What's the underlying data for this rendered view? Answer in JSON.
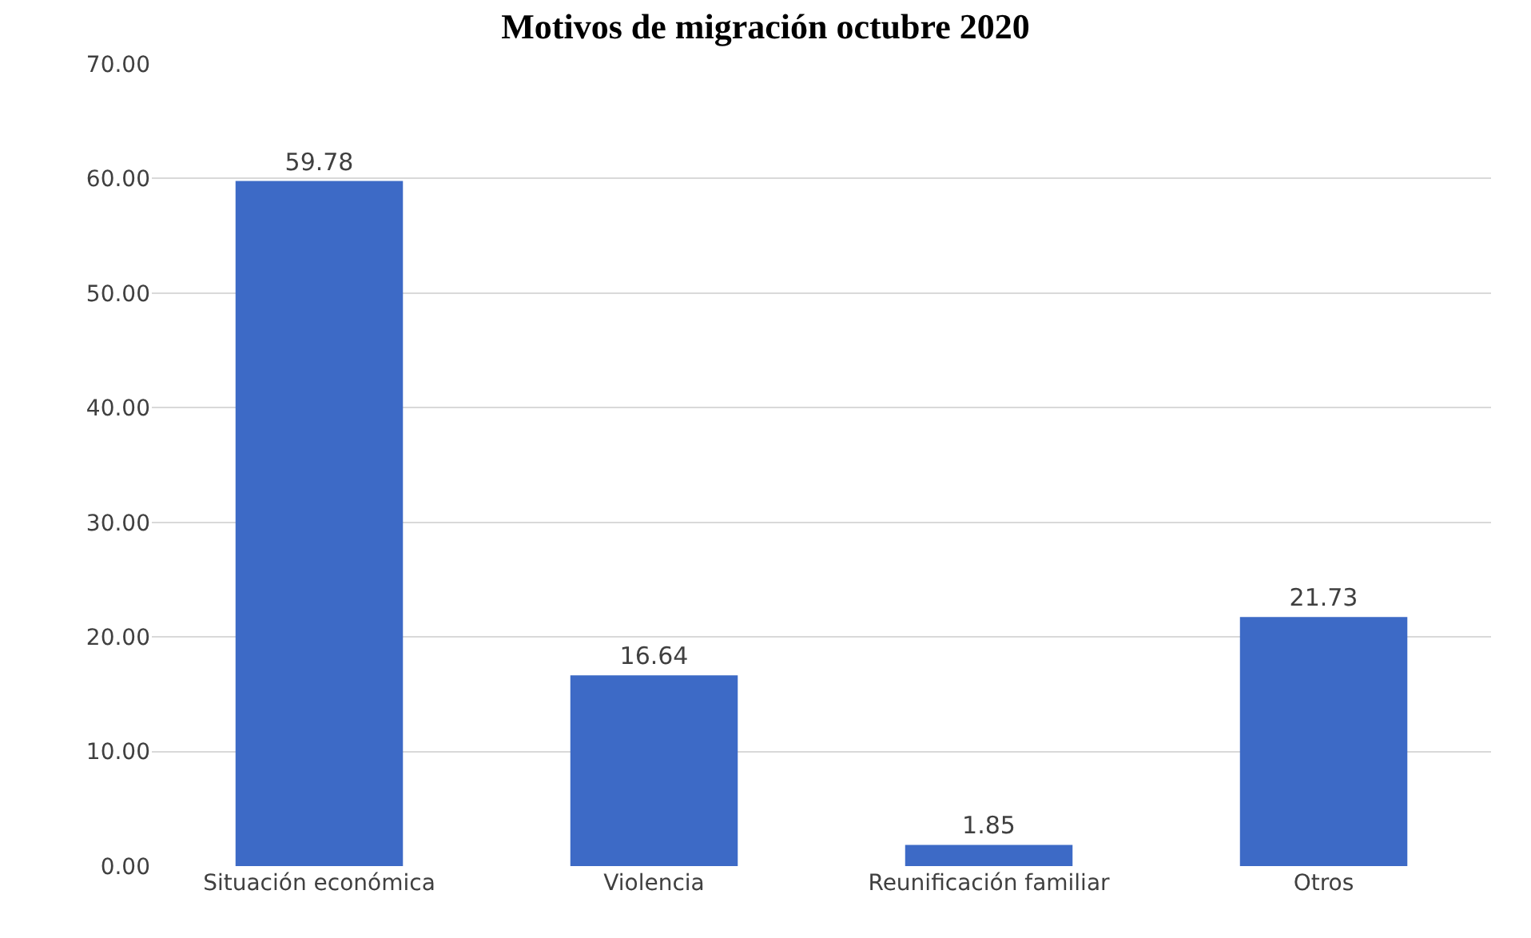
{
  "chart_data": {
    "type": "bar",
    "title": "Motivos de migración octubre 2020",
    "categories": [
      "Situación económica",
      "Violencia",
      "Reunificación familiar",
      "Otros"
    ],
    "values": [
      59.78,
      16.64,
      1.85,
      21.73
    ],
    "color": "#3d6ac6",
    "ylim": [
      0,
      70
    ],
    "yticks": [
      {
        "value": 0,
        "label": "0.00"
      },
      {
        "value": 10,
        "label": "10.00"
      },
      {
        "value": 20,
        "label": "20.00"
      },
      {
        "value": 30,
        "label": "30.00"
      },
      {
        "value": 40,
        "label": "40.00"
      },
      {
        "value": 50,
        "label": "50.00"
      },
      {
        "value": 60,
        "label": "60.00"
      },
      {
        "value": 70,
        "label": "70.00"
      }
    ],
    "grid": "y",
    "data_labels": true
  }
}
